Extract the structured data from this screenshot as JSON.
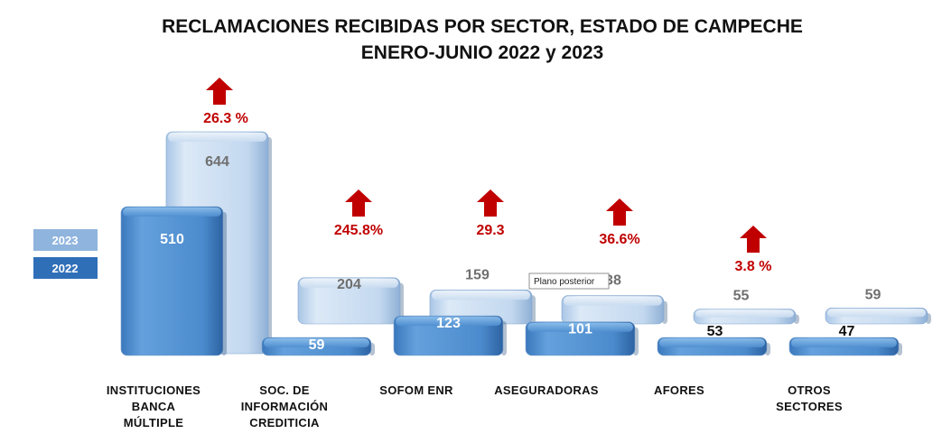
{
  "chart_data": {
    "type": "bar",
    "title": "RECLAMACIONES RECIBIDAS POR SECTOR, ESTADO DE CAMPECHE",
    "subtitle": "ENERO-JUNIO 2022 y 2023",
    "categories": [
      [
        "INSTITUCIONES",
        "BANCA",
        "MÚLTIPLE"
      ],
      [
        "SOC. DE",
        "INFORMACIÓN",
        "CREDITICIA"
      ],
      [
        "SOFOM ENR"
      ],
      [
        "ASEGURADORAS"
      ],
      [
        "AFORES"
      ],
      [
        "OTROS",
        "SECTORES"
      ]
    ],
    "series": [
      {
        "name": "2023",
        "values": [
          644,
          204,
          159,
          138,
          55,
          59
        ],
        "color": "#c5daf0"
      },
      {
        "name": "2022",
        "values": [
          510,
          59,
          123,
          101,
          53,
          47
        ],
        "color": "#4f8ed0"
      }
    ],
    "changes": [
      "26.3 %",
      "245.8%",
      "29.3",
      "36.6%",
      "3.8 %",
      ""
    ],
    "legend_position": "left",
    "grid": false,
    "tooltip": "Plano posterior"
  }
}
